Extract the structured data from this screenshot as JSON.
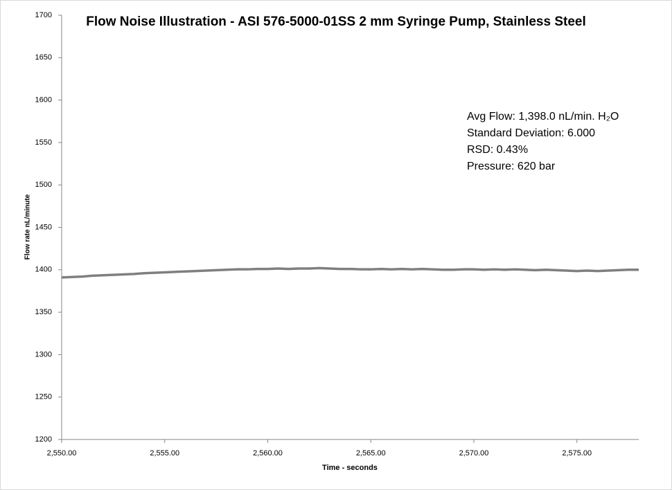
{
  "chart_data": {
    "type": "line",
    "title": "Flow Noise Illustration - ASI 576-5000-01SS 2 mm Syringe Pump, Stainless Steel",
    "x_label": "Time - seconds",
    "y_label": "Flow rate nL/minute",
    "annotations": [
      "Avg Flow: 1,398.0 nL/min. H₂O",
      "Standard Deviation: 6.000",
      "RSD: 0.43%",
      "Pressure: 620 bar"
    ],
    "x": [
      2550,
      2550.5,
      2551,
      2551.5,
      2552,
      2552.5,
      2553,
      2553.5,
      2554,
      2554.5,
      2555,
      2555.5,
      2556,
      2556.5,
      2557,
      2557.5,
      2558,
      2558.5,
      2559,
      2559.5,
      2560,
      2560.5,
      2561,
      2561.5,
      2562,
      2562.5,
      2563,
      2563.5,
      2564,
      2564.5,
      2565,
      2565.5,
      2566,
      2566.5,
      2567,
      2567.5,
      2568,
      2568.5,
      2569,
      2569.5,
      2570,
      2570.5,
      2571,
      2571.5,
      2572,
      2572.5,
      2573,
      2573.5,
      2574,
      2574.5,
      2575,
      2575.5,
      2576,
      2576.5,
      2577,
      2577.5,
      2578
    ],
    "series": [
      {
        "color": "#7f7f7f",
        "values": [
          1391,
          1391.5,
          1392,
          1393,
          1393.5,
          1394,
          1394.5,
          1395,
          1396,
          1396.5,
          1397,
          1397.5,
          1398,
          1398.5,
          1399,
          1399.5,
          1400,
          1400.5,
          1400.5,
          1401,
          1401,
          1401.5,
          1401,
          1401.5,
          1401.5,
          1402,
          1401.5,
          1401,
          1401,
          1400.5,
          1400.5,
          1401,
          1400.5,
          1401,
          1400.5,
          1401,
          1400.5,
          1400,
          1400,
          1400.5,
          1400.5,
          1400,
          1400.5,
          1400,
          1400.5,
          1400,
          1399.5,
          1400,
          1399.5,
          1399,
          1398.5,
          1399,
          1398.5,
          1399,
          1399.5,
          1400,
          1400
        ]
      }
    ],
    "xlim": [
      2550,
      2578
    ],
    "xticks": [
      {
        "value": 2550,
        "label": "2,550.00"
      },
      {
        "value": 2555,
        "label": "2,555.00"
      },
      {
        "value": 2560,
        "label": "2,560.00"
      },
      {
        "value": 2565,
        "label": "2,565.00"
      },
      {
        "value": 2570,
        "label": "2,570.00"
      },
      {
        "value": 2575,
        "label": "2,575.00"
      }
    ],
    "ylim": [
      1200,
      1700
    ],
    "yticks": [
      1200,
      1250,
      1300,
      1350,
      1400,
      1450,
      1500,
      1550,
      1600,
      1650,
      1700
    ],
    "grid": false
  }
}
